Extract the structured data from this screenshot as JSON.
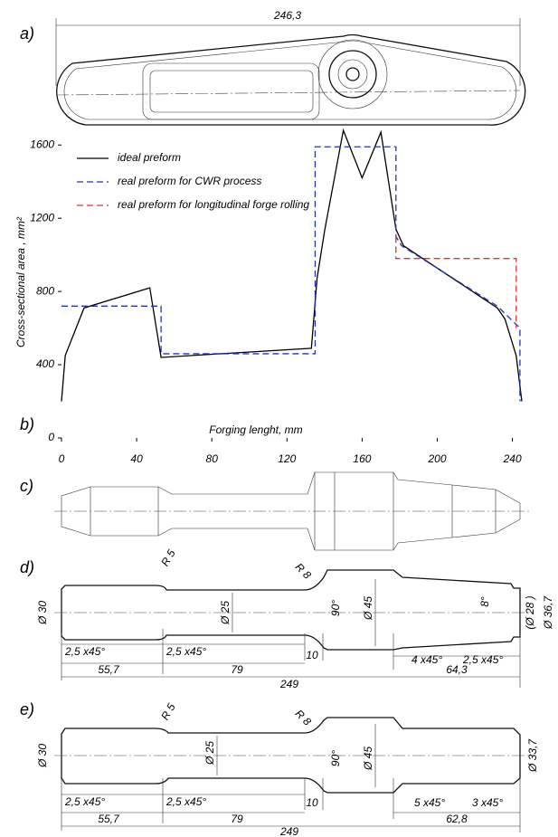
{
  "chart_data": {
    "type": "line",
    "y_label": "Cross-sectional area , mm²",
    "x_label": "Forging lenght, mm",
    "xlim": [
      0,
      245
    ],
    "ylim": [
      0,
      1700
    ],
    "xticks": [
      0,
      40,
      80,
      120,
      160,
      200,
      240
    ],
    "yticks": [
      0,
      400,
      800,
      1200,
      1600
    ],
    "legend": "upper left",
    "series": [
      {
        "name": "ideal preform",
        "color": "#000000",
        "dash": "solid",
        "x": [
          0,
          2,
          12,
          47,
          53,
          133,
          136,
          140,
          150,
          160,
          170,
          178,
          182,
          232,
          236,
          242,
          245
        ],
        "values": [
          200,
          450,
          710,
          820,
          440,
          490,
          870,
          1130,
          1680,
          1420,
          1670,
          1140,
          1050,
          710,
          650,
          450,
          200
        ]
      },
      {
        "name": "real preform for CWR process",
        "color": "#2233bb",
        "dash": "dashed",
        "x": [
          0,
          53,
          53,
          135,
          135,
          178,
          178,
          181,
          232,
          244,
          244
        ],
        "values": [
          720,
          720,
          460,
          460,
          1590,
          1590,
          1100,
          1050,
          720,
          600,
          200
        ]
      },
      {
        "name": "real preform for longitudinal forge rolling",
        "color": "#e03030",
        "dash": "dashed",
        "x": [
          178,
          178,
          242,
          242
        ],
        "values": [
          1100,
          980,
          980,
          600
        ]
      }
    ]
  },
  "panels": {
    "a": {
      "label": "a)",
      "dims": [
        "246,3"
      ]
    },
    "b": {
      "label": "b)"
    },
    "c": {
      "label": "c)"
    },
    "d": {
      "label": "d)",
      "dims": [
        "R 5",
        "R 8",
        "Ø 30",
        "Ø 25",
        "90°",
        "Ø 45",
        "8°",
        "(Ø 28 )",
        "Ø 36,7",
        "2,5 x45°",
        "2,5 x45°",
        "10",
        "4 x45°",
        "2,5 x45°",
        "55,7",
        "79",
        "64,3",
        "249"
      ]
    },
    "e": {
      "label": "e)",
      "dims": [
        "R 5",
        "R 8",
        "Ø 30",
        "Ø 25",
        "90°",
        "Ø 45",
        "Ø 33,7",
        "2,5 x45°",
        "2,5 x45°",
        "10",
        "5 x45°",
        "3 x45°",
        "55,7",
        "79",
        "62,8",
        "249"
      ]
    }
  }
}
